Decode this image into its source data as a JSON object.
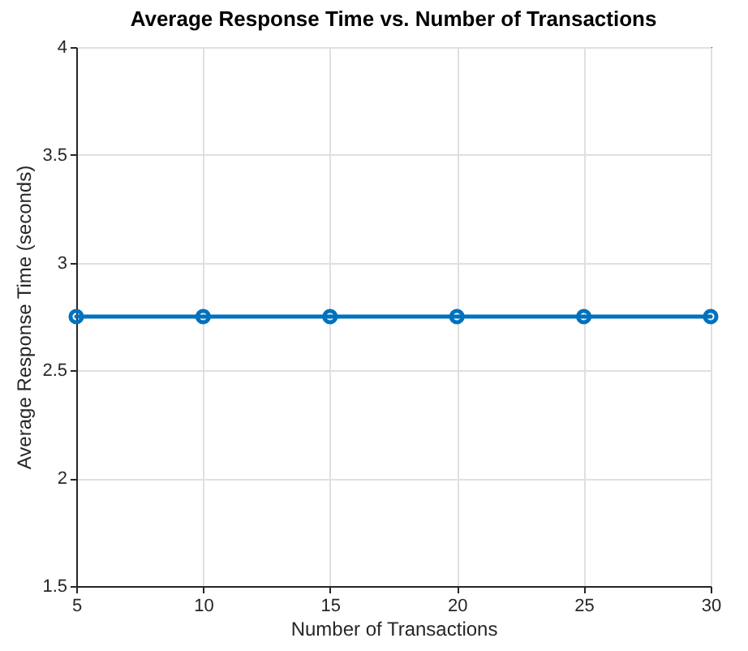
{
  "chart_data": {
    "type": "line",
    "title": "Average Response Time vs. Number of Transactions",
    "xlabel": "Number of Transactions",
    "ylabel": "Average Response Time (seconds)",
    "x": [
      5,
      10,
      15,
      20,
      25,
      30
    ],
    "series": [
      {
        "color": "#0072bd",
        "values": [
          2.75,
          2.75,
          2.75,
          2.75,
          2.75,
          2.75
        ]
      }
    ],
    "xlim": [
      5,
      30
    ],
    "xticks": [
      5,
      10,
      15,
      20,
      25,
      30
    ],
    "ylim": [
      1.5,
      4
    ],
    "yticks": [
      1.5,
      2,
      2.5,
      3,
      3.5,
      4
    ],
    "grid": true,
    "marker": "circle",
    "line_style": "solid"
  }
}
